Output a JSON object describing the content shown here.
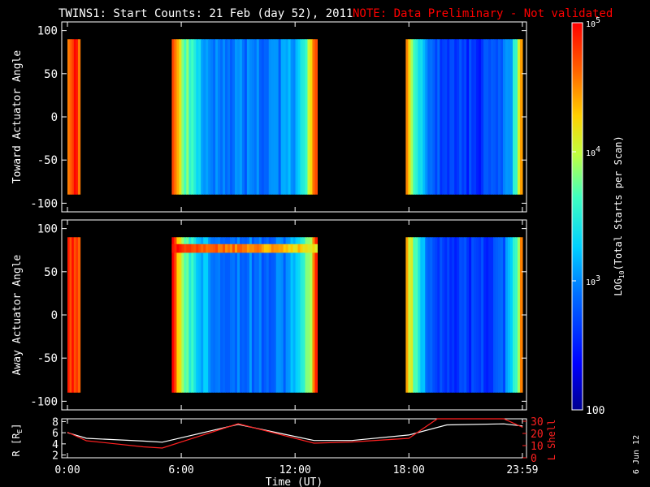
{
  "title": "TWINS1: Start Counts: 21 Feb (day  52), 2011",
  "note": "NOTE: Data Preliminary - Not validated",
  "date_stamp": "6 Jun 12",
  "colors": {
    "background": "#000000",
    "axes": "#ffffff",
    "note": "#ff0000",
    "l_shell": "#ff2020",
    "r_line": "#ffffff"
  },
  "chart_data": [
    {
      "type": "heatmap",
      "ylabel": "Toward Actuator Angle",
      "ylim": [
        -110,
        110
      ],
      "yticks": [
        "100",
        "50",
        "0",
        "-50",
        "-100"
      ],
      "x_range_hours": [
        -0.3,
        24.2
      ],
      "data_blocks_ut": [
        [
          "00:00",
          "00:40"
        ],
        [
          "05:30",
          "13:10"
        ],
        [
          "17:50",
          "23:59"
        ]
      ],
      "angle_range": [
        -90,
        90
      ],
      "colorscale": "rainbow log: 100 (blue) to 10^5 (red)"
    },
    {
      "type": "heatmap",
      "ylabel": "Away Actuator Angle",
      "ylim": [
        -110,
        110
      ],
      "yticks": [
        "100",
        "50",
        "0",
        "-50",
        "-100"
      ],
      "x_range_hours": [
        -0.3,
        24.2
      ],
      "data_blocks_ut": [
        [
          "00:00",
          "00:40"
        ],
        [
          "05:30",
          "13:10"
        ],
        [
          "17:50",
          "23:59"
        ]
      ],
      "angle_range": [
        -90,
        90
      ],
      "colorscale": "rainbow log: 100 (blue) to 10^5 (red)"
    },
    {
      "type": "line",
      "xlabel": "Time (UT)",
      "xticks": [
        "0:00",
        "6:00",
        "12:00",
        "18:00",
        "23:59"
      ],
      "left_axis": {
        "label_parts": [
          "R [R",
          "E",
          "]"
        ],
        "ticks": [
          "8",
          "6",
          "4",
          "2"
        ],
        "ylim": [
          1.5,
          8.5
        ]
      },
      "right_axis": {
        "label": "L Shell",
        "ticks": [
          "30",
          "20",
          "10",
          "0"
        ],
        "ylim": [
          0,
          32
        ]
      },
      "series": [
        {
          "x": [
            0,
            1,
            4,
            5,
            9,
            13,
            15,
            18,
            20,
            23,
            24
          ],
          "values": [
            6.0,
            5.0,
            4.5,
            4.3,
            7.5,
            4.6,
            4.6,
            5.6,
            7.4,
            7.6,
            7.2
          ]
        },
        {
          "x": [
            0,
            1,
            4,
            5,
            9,
            13,
            15,
            18,
            19.5,
            23,
            24
          ],
          "values": [
            21,
            14,
            9,
            8,
            28,
            12,
            13,
            16,
            32,
            32,
            25
          ]
        }
      ]
    }
  ],
  "colorbar": {
    "label_parts": [
      "LOG",
      "10",
      "(Total Starts per Scan)"
    ],
    "ticks": [
      {
        "base": "10",
        "exp": "5"
      },
      {
        "base": "10",
        "exp": "4"
      },
      {
        "base": "10",
        "exp": "3"
      },
      {
        "base": "100",
        "exp": ""
      }
    ],
    "range": [
      100,
      100000
    ],
    "scale": "log"
  }
}
